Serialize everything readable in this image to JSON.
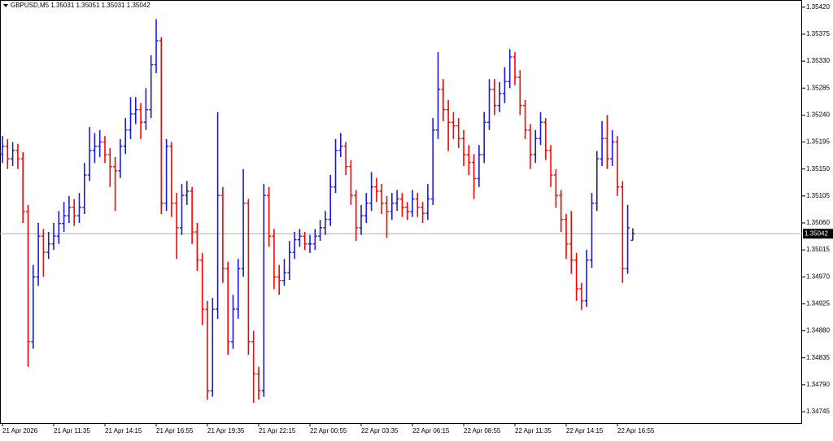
{
  "chart_data": {
    "type": "candlestick",
    "title": "GBPUSD,M5  1.35031 1.35051 1.35031 1.35042",
    "up_color": "#1a1adf",
    "down_color": "#ff0000",
    "last_price": 1.35042,
    "ylim": [
      1.34726,
      1.35432
    ],
    "yticks": [
      {
        "value": 1.34745,
        "label": "1.34745"
      },
      {
        "value": 1.3479,
        "label": "1.34790"
      },
      {
        "value": 1.34835,
        "label": "1.34835"
      },
      {
        "value": 1.3488,
        "label": "1.34880"
      },
      {
        "value": 1.34925,
        "label": "1.34925"
      },
      {
        "value": 1.3497,
        "label": "1.34970"
      },
      {
        "value": 1.35015,
        "label": "1.35015"
      },
      {
        "value": 1.3506,
        "label": "1.35060"
      },
      {
        "value": 1.35105,
        "label": "1.35105"
      },
      {
        "value": 1.3515,
        "label": "1.35150"
      },
      {
        "value": 1.35195,
        "label": "1.35195"
      },
      {
        "value": 1.3524,
        "label": "1.35240"
      },
      {
        "value": 1.35285,
        "label": "1.35285"
      },
      {
        "value": 1.3533,
        "label": "1.35330"
      },
      {
        "value": 1.35375,
        "label": "1.35375"
      },
      {
        "value": 1.3542,
        "label": "1.35420"
      }
    ],
    "categories": [
      "21 Apr 2026",
      null,
      null,
      null,
      null,
      null,
      null,
      null,
      null,
      null,
      "21 Apr 11:35",
      null,
      null,
      null,
      null,
      null,
      null,
      null,
      null,
      null,
      "21 Apr 14:15",
      null,
      null,
      null,
      null,
      null,
      null,
      null,
      null,
      null,
      "21 Apr 16:55",
      null,
      null,
      null,
      null,
      null,
      null,
      null,
      null,
      null,
      "21 Apr 19:35",
      null,
      null,
      null,
      null,
      null,
      null,
      null,
      null,
      null,
      "21 Apr 22:15",
      null,
      null,
      null,
      null,
      null,
      null,
      null,
      null,
      null,
      "22 Apr 00:55",
      null,
      null,
      null,
      null,
      null,
      null,
      null,
      null,
      null,
      "22 Apr 03:35",
      null,
      null,
      null,
      null,
      null,
      null,
      null,
      null,
      null,
      "22 Apr 06:15",
      null,
      null,
      null,
      null,
      null,
      null,
      null,
      null,
      null,
      "22 Apr 08:55",
      null,
      null,
      null,
      null,
      null,
      null,
      null,
      null,
      null,
      "22 Apr 11:35",
      null,
      null,
      null,
      null,
      null,
      null,
      null,
      null,
      null,
      "22 Apr 14:15",
      null,
      null,
      null,
      null,
      null,
      null,
      null,
      null,
      null,
      "22 Apr 16:55",
      null,
      null,
      null
    ],
    "open": [
      1.35175,
      1.35188,
      1.35167,
      1.35181,
      1.35167,
      1.35079,
      1.34862,
      1.3497,
      1.35038,
      1.35011,
      1.35025,
      1.35038,
      1.35059,
      1.35072,
      1.35086,
      1.35072,
      1.35086,
      1.3514,
      1.35181,
      1.35188,
      1.35195,
      1.35174,
      1.35154,
      1.35147,
      1.35188,
      1.35215,
      1.35242,
      1.35249,
      1.35228,
      1.35249,
      1.35324,
      1.35364,
      1.35093,
      1.35188,
      1.35093,
      1.35052,
      1.35106,
      1.35113,
      1.35045,
      1.34998,
      1.34916,
      1.3478,
      1.34916,
      1.35106,
      1.34984,
      1.34862,
      1.34916,
      1.34984,
      1.35093,
      1.34862,
      1.34808,
      1.3478,
      1.35106,
      1.35038,
      1.3497,
      1.34964,
      1.34977,
      1.35011,
      1.35032,
      1.35038,
      1.35025,
      1.35025,
      1.35038,
      1.35052,
      1.35066,
      1.3512,
      1.35181,
      1.35188,
      1.35154,
      1.35106,
      1.35052,
      1.35072,
      1.35093,
      1.3512,
      1.35113,
      1.35093,
      1.35079,
      1.35093,
      1.351,
      1.35086,
      1.35079,
      1.351,
      1.35086,
      1.35076,
      1.351,
      1.35215,
      1.35283,
      1.35249,
      1.35228,
      1.35222,
      1.35201,
      1.35174,
      1.35161,
      1.35134,
      1.35174,
      1.35228,
      1.35283,
      1.35256,
      1.35276,
      1.35296,
      1.35337,
      1.35303,
      1.35256,
      1.35215,
      1.35174,
      1.35201,
      1.35228,
      1.35181,
      1.3514,
      1.35106,
      1.35066,
      1.35025,
      1.34998,
      1.3495,
      1.3493,
      1.34998,
      1.35093,
      1.35167,
      1.35201,
      1.35167,
      1.35195,
      1.3512,
      1.34984,
      1.35031
    ],
    "high": [
      1.35205,
      1.352,
      1.35195,
      1.35192,
      1.35178,
      1.3509,
      1.3499,
      1.3506,
      1.3505,
      1.35045,
      1.3506,
      1.3508,
      1.35095,
      1.35105,
      1.351,
      1.3511,
      1.3516,
      1.3522,
      1.3521,
      1.35215,
      1.35205,
      1.35185,
      1.3517,
      1.352,
      1.35235,
      1.3527,
      1.3527,
      1.3526,
      1.35285,
      1.3534,
      1.354,
      1.3537,
      1.352,
      1.35195,
      1.3511,
      1.35125,
      1.3513,
      1.3512,
      1.3506,
      1.3501,
      1.3493,
      1.34935,
      1.35245,
      1.3512,
      1.34995,
      1.3494,
      1.35,
      1.3515,
      1.351,
      1.3488,
      1.3482,
      1.35125,
      1.3512,
      1.3505,
      1.3499,
      1.35,
      1.3503,
      1.35045,
      1.3505,
      1.35045,
      1.3504,
      1.3505,
      1.35065,
      1.3508,
      1.3514,
      1.352,
      1.3521,
      1.35195,
      1.35165,
      1.35115,
      1.3509,
      1.3511,
      1.35145,
      1.35135,
      1.35125,
      1.35105,
      1.3511,
      1.35115,
      1.3511,
      1.35095,
      1.35115,
      1.3511,
      1.35095,
      1.35125,
      1.35235,
      1.35345,
      1.353,
      1.35265,
      1.35245,
      1.35235,
      1.35215,
      1.3519,
      1.35175,
      1.3519,
      1.35245,
      1.353,
      1.353,
      1.35295,
      1.3532,
      1.3535,
      1.35345,
      1.35315,
      1.35265,
      1.35225,
      1.35215,
      1.35245,
      1.35235,
      1.3519,
      1.3515,
      1.35115,
      1.35075,
      1.3508,
      1.3501,
      1.3496,
      1.35015,
      1.3511,
      1.3518,
      1.3523,
      1.3524,
      1.35215,
      1.35205,
      1.3513,
      1.3509,
      1.35051
    ],
    "low": [
      1.3516,
      1.3515,
      1.35155,
      1.3515,
      1.3506,
      1.3482,
      1.3485,
      1.34955,
      1.3497,
      1.35,
      1.35015,
      1.35025,
      1.35045,
      1.3506,
      1.35055,
      1.3506,
      1.35075,
      1.3513,
      1.3516,
      1.3517,
      1.3516,
      1.3512,
      1.3508,
      1.35135,
      1.35175,
      1.352,
      1.35225,
      1.352,
      1.35215,
      1.35235,
      1.3531,
      1.35075,
      1.3508,
      1.3507,
      1.35,
      1.3504,
      1.3509,
      1.35025,
      1.3498,
      1.3489,
      1.34765,
      1.3477,
      1.349,
      1.3496,
      1.3484,
      1.3485,
      1.349,
      1.3497,
      1.3484,
      1.3476,
      1.34765,
      1.3477,
      1.3502,
      1.3495,
      1.3494,
      1.34955,
      1.34965,
      1.35,
      1.3502,
      1.35015,
      1.3501,
      1.35015,
      1.3503,
      1.3504,
      1.35055,
      1.3511,
      1.3517,
      1.3514,
      1.3509,
      1.3503,
      1.3504,
      1.3506,
      1.3508,
      1.35095,
      1.35075,
      1.35035,
      1.35065,
      1.3508,
      1.3507,
      1.35065,
      1.3507,
      1.3507,
      1.3506,
      1.35065,
      1.3509,
      1.352,
      1.3523,
      1.3518,
      1.352,
      1.35185,
      1.35155,
      1.3514,
      1.351,
      1.3512,
      1.3516,
      1.35215,
      1.3524,
      1.35245,
      1.3526,
      1.35285,
      1.3529,
      1.3524,
      1.352,
      1.3515,
      1.3516,
      1.3519,
      1.35165,
      1.3512,
      1.35085,
      1.35045,
      1.35,
      1.34975,
      1.3493,
      1.34915,
      1.3492,
      1.34985,
      1.3508,
      1.35155,
      1.3515,
      1.35155,
      1.35105,
      1.3496,
      1.34975,
      1.35031
    ],
    "close": [
      1.35188,
      1.35167,
      1.35181,
      1.35167,
      1.35079,
      1.34862,
      1.3497,
      1.35038,
      1.35011,
      1.35025,
      1.35038,
      1.35059,
      1.35072,
      1.35086,
      1.35072,
      1.35086,
      1.3514,
      1.35181,
      1.35188,
      1.35195,
      1.35174,
      1.35154,
      1.35147,
      1.35188,
      1.35215,
      1.35242,
      1.35249,
      1.35228,
      1.35249,
      1.35324,
      1.35364,
      1.35093,
      1.35188,
      1.35093,
      1.35052,
      1.35106,
      1.35113,
      1.35045,
      1.34998,
      1.34916,
      1.3478,
      1.34916,
      1.35106,
      1.34984,
      1.34862,
      1.34916,
      1.34984,
      1.35093,
      1.34862,
      1.34808,
      1.3478,
      1.35106,
      1.35038,
      1.3497,
      1.34964,
      1.34977,
      1.35011,
      1.35032,
      1.35038,
      1.35025,
      1.35025,
      1.35038,
      1.35052,
      1.35066,
      1.3512,
      1.35181,
      1.35188,
      1.35154,
      1.35106,
      1.35052,
      1.35072,
      1.35093,
      1.3512,
      1.35113,
      1.35093,
      1.35079,
      1.35093,
      1.351,
      1.35086,
      1.35079,
      1.351,
      1.35086,
      1.35076,
      1.351,
      1.35215,
      1.35283,
      1.35249,
      1.35228,
      1.35222,
      1.35201,
      1.35174,
      1.35161,
      1.35134,
      1.35174,
      1.35228,
      1.35283,
      1.35256,
      1.35276,
      1.35296,
      1.35337,
      1.35303,
      1.35256,
      1.35215,
      1.35174,
      1.35201,
      1.35228,
      1.35181,
      1.3514,
      1.35106,
      1.35066,
      1.35025,
      1.34998,
      1.3495,
      1.3493,
      1.34998,
      1.35093,
      1.35167,
      1.35201,
      1.35167,
      1.35195,
      1.3512,
      1.34984,
      1.35052,
      1.35042
    ]
  }
}
